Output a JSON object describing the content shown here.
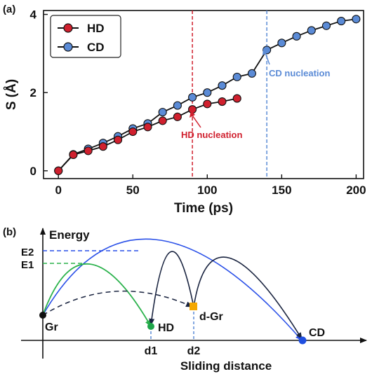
{
  "chart_data": [
    {
      "panel_label": "(a)",
      "type": "line",
      "xlabel": "Time (ps)",
      "ylabel": "S (Å)",
      "xlim": [
        -10,
        205
      ],
      "ylim": [
        -0.2,
        4.1
      ],
      "xticks": [
        0,
        50,
        100,
        150,
        200
      ],
      "yticks": [
        0,
        2,
        4
      ],
      "grid": false,
      "legend_position": "top-left",
      "series": [
        {
          "name": "HD",
          "color": "#d0202e",
          "x": [
            0,
            10,
            20,
            30,
            40,
            50,
            60,
            70,
            80,
            90,
            100,
            110,
            120
          ],
          "y": [
            0.0,
            0.41,
            0.51,
            0.62,
            0.79,
            1.0,
            1.12,
            1.28,
            1.38,
            1.57,
            1.71,
            1.77,
            1.85
          ]
        },
        {
          "name": "CD",
          "color": "#5b8bd6",
          "x": [
            0,
            10,
            20,
            30,
            40,
            50,
            60,
            70,
            80,
            90,
            100,
            110,
            120,
            130,
            140,
            150,
            160,
            170,
            180,
            190,
            200
          ],
          "y": [
            0.0,
            0.42,
            0.56,
            0.71,
            0.88,
            1.08,
            1.21,
            1.5,
            1.67,
            1.88,
            2.0,
            2.18,
            2.4,
            2.49,
            3.09,
            3.27,
            3.44,
            3.59,
            3.71,
            3.83,
            3.88
          ]
        }
      ],
      "vlines": [
        {
          "x": 90,
          "color": "#d0202e",
          "style": "dashed"
        },
        {
          "x": 140,
          "color": "#5b8bd6",
          "style": "dashed"
        }
      ],
      "annotations": [
        {
          "text": "HD nucleation",
          "color": "#d0202e"
        },
        {
          "text": "CD nucleation",
          "color": "#5b8bd6"
        }
      ]
    },
    {
      "panel_label": "(b)",
      "type": "diagram",
      "ylabel": "Energy",
      "xlabel": "Sliding distance",
      "energy_labels": [
        "E2",
        "E1"
      ],
      "distance_labels": [
        "d1",
        "d2"
      ],
      "states": [
        {
          "text": "Gr",
          "color": "#111111"
        },
        {
          "text": "HD",
          "color": "#1fa64a"
        },
        {
          "text": "d-Gr",
          "color": "#f5a800"
        },
        {
          "text": "CD",
          "color": "#1f4fe0"
        }
      ],
      "colors": {
        "green_path": "#2bb24c",
        "blue_path": "#2a50e8",
        "navy_path": "#1a2440",
        "dashed_ref": "#2a50e8",
        "dashed_green": "#2bb24c"
      }
    }
  ]
}
